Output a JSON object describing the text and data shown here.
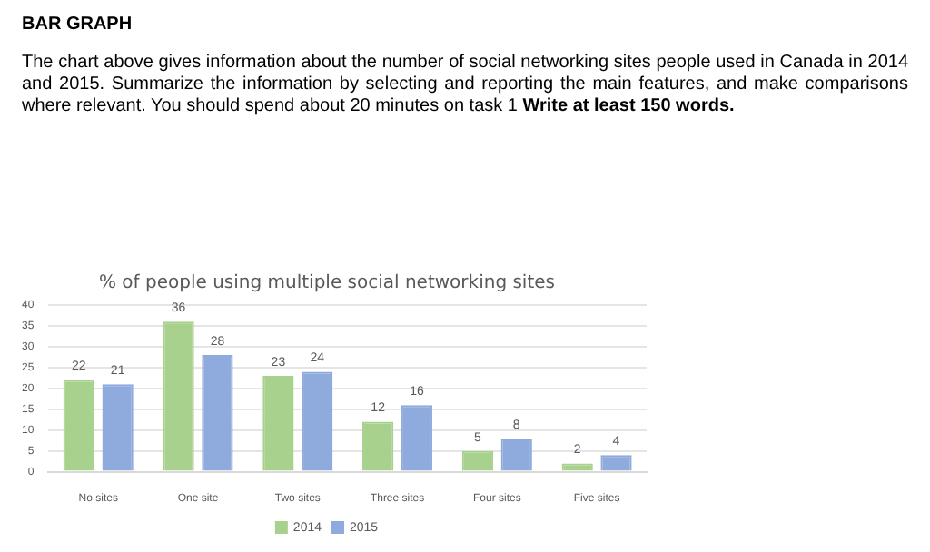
{
  "chart_data": {
    "type": "bar",
    "title": "% of people using multiple social networking sites",
    "categories": [
      "No sites",
      "One site",
      "Two sites",
      "Three sites",
      "Four sites",
      "Five sites"
    ],
    "series": [
      {
        "name": "2014",
        "color": "#a9d18e",
        "values": [
          22,
          36,
          23,
          12,
          5,
          2
        ]
      },
      {
        "name": "2015",
        "color": "#8faadc",
        "values": [
          21,
          28,
          24,
          16,
          8,
          4
        ]
      }
    ],
    "ylim": [
      0,
      40
    ],
    "yticks": [
      0,
      5,
      10,
      15,
      20,
      25,
      30,
      35,
      40
    ],
    "grid": "y",
    "legend": "bottom",
    "data_labels": true,
    "annotations": [
      "BAR GRAPH",
      "The chart above gives information about the number of social networking sites people used in Canada in 2014 and 2015. Summarize the information by selecting and reporting the main features, and make comparisons where relevant. You should spend about 20 minutes on task 1",
      "Write at least 150 words."
    ]
  }
}
